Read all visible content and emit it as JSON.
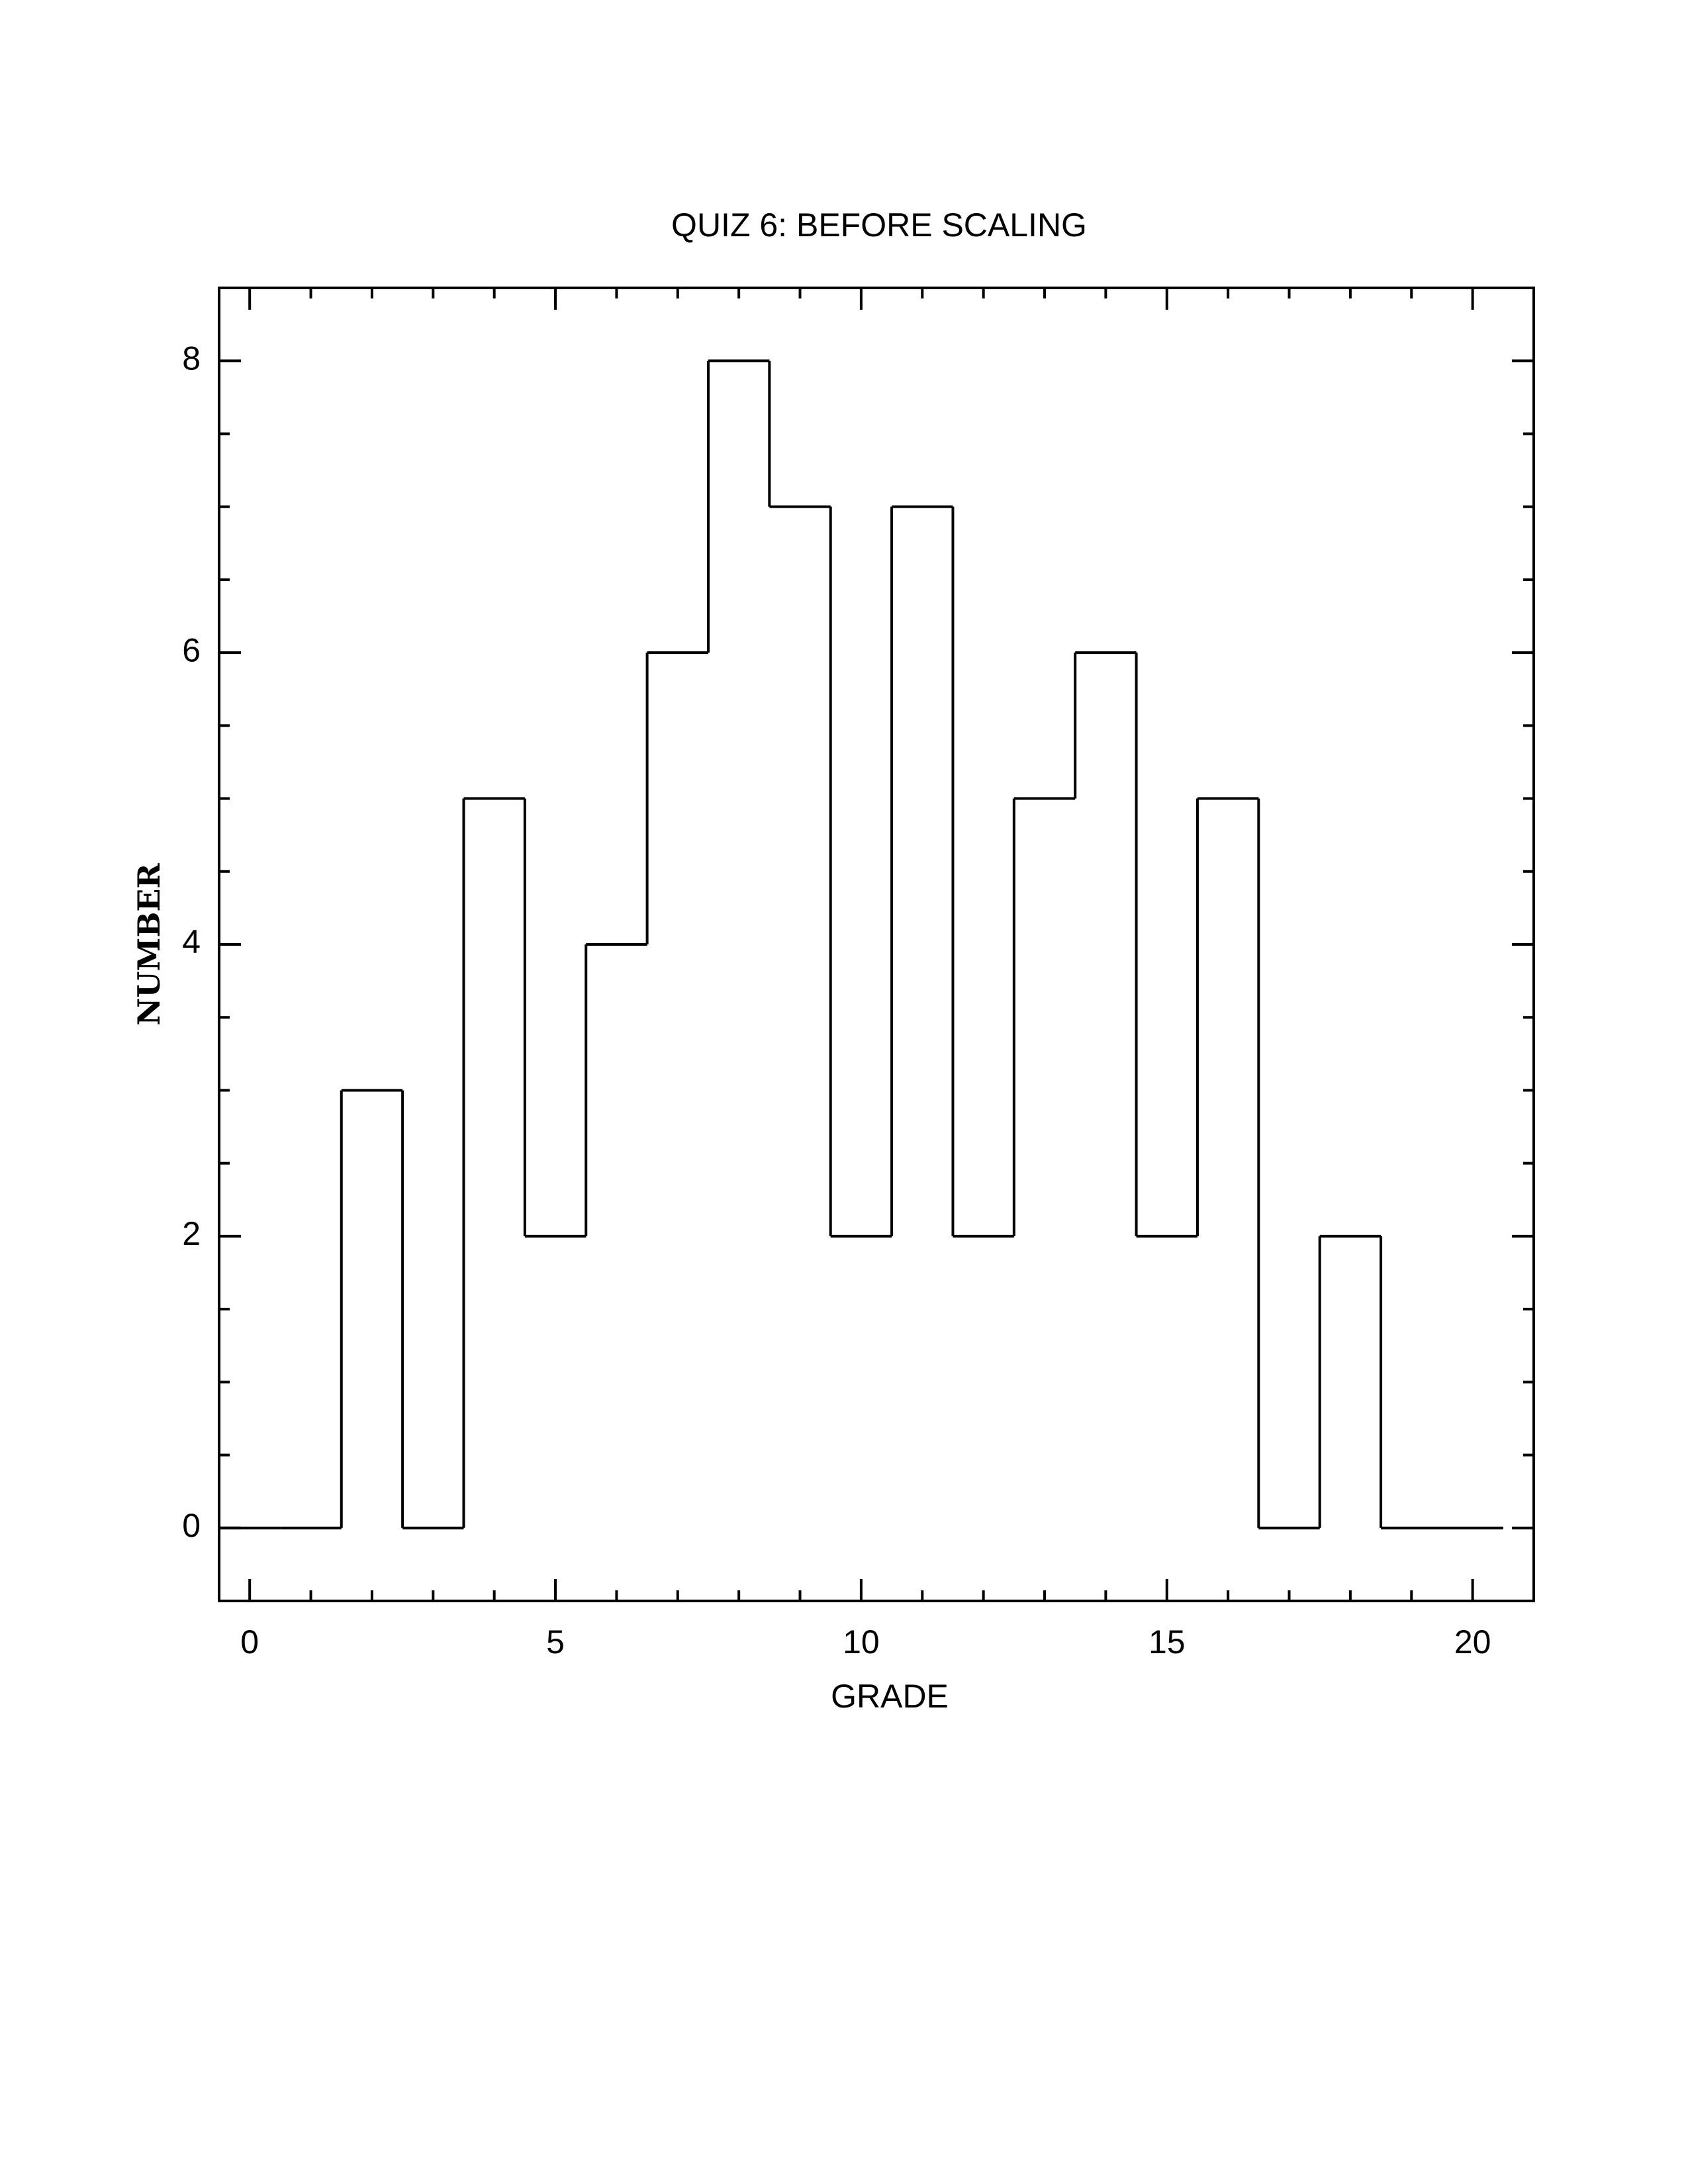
{
  "chart_data": {
    "type": "histogram",
    "title": "QUIZ 6: BEFORE SCALING",
    "x_label": "GRADE",
    "y_label": "NUMBER",
    "bins": [
      -0.5,
      0.5,
      1.5,
      2.5,
      3.5,
      4.5,
      5.5,
      6.5,
      7.5,
      8.5,
      9.5,
      10.5,
      11.5,
      12.5,
      13.5,
      14.5,
      15.5,
      16.5,
      17.5,
      18.5,
      19.5,
      20.5
    ],
    "values": [
      0,
      0,
      3,
      0,
      5,
      2,
      4,
      6,
      8,
      7,
      2,
      7,
      2,
      5,
      6,
      2,
      5,
      0,
      2,
      0,
      0
    ],
    "color": "#000000",
    "xlim": [
      -0.5,
      21
    ],
    "xticks": [
      0,
      5,
      10,
      15,
      20
    ],
    "ylim": [
      -0.5,
      8.5
    ],
    "yticks": [
      0,
      2,
      4,
      6,
      8
    ]
  }
}
